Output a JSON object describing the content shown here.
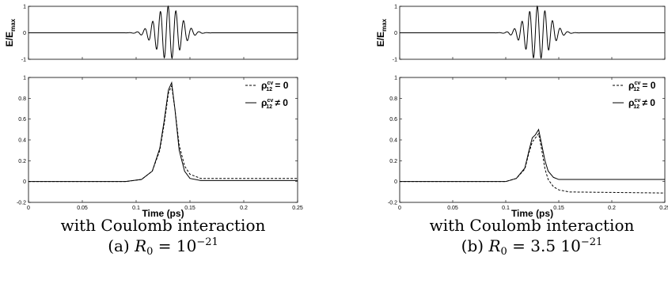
{
  "chart_data": [
    {
      "id": "a",
      "panels": [
        {
          "type": "line",
          "role": "field",
          "ylabel": {
            "main": "E/E",
            "sub": "max"
          },
          "xlim": [
            0,
            0.25
          ],
          "ylim": [
            -1,
            1
          ],
          "yticks": [
            "1",
            "0",
            "-1"
          ],
          "series": [
            {
              "style": "solid",
              "pulse": {
                "center": 0.13,
                "width": 0.016,
                "period": 0.0072,
                "amplitude": 1.0
              }
            }
          ]
        },
        {
          "type": "line",
          "role": "population",
          "xlabel": "Time (ps)",
          "xlim": [
            0,
            0.25
          ],
          "ylim": [
            -0.2,
            1
          ],
          "xticks": [
            "0",
            "0.05",
            "0.1",
            "0.15",
            "0.2",
            "0.25"
          ],
          "yticks": [
            "1",
            "0.8",
            "0.6",
            "0.4",
            "0.2",
            "0",
            "-0.2"
          ],
          "legend": {
            "placement": "top-right",
            "entries": [
              {
                "style": "dashed",
                "symbol": "ρ",
                "sub": "12",
                "sup": "cv",
                "rel": "= 0"
              },
              {
                "style": "solid",
                "symbol": "ρ",
                "sub": "12",
                "sup": "cv",
                "rel": "≠ 0"
              }
            ]
          },
          "series": [
            {
              "style": "dashed",
              "x": [
                0,
                0.09,
                0.105,
                0.115,
                0.122,
                0.126,
                0.13,
                0.133,
                0.136,
                0.14,
                0.145,
                0.15,
                0.16,
                0.17,
                0.25
              ],
              "y": [
                0,
                0,
                0.02,
                0.1,
                0.3,
                0.55,
                0.85,
                0.92,
                0.7,
                0.35,
                0.15,
                0.07,
                0.03,
                0.03,
                0.03
              ]
            },
            {
              "style": "solid",
              "x": [
                0,
                0.09,
                0.105,
                0.115,
                0.122,
                0.126,
                0.13,
                0.133,
                0.136,
                0.14,
                0.145,
                0.15,
                0.16,
                0.17,
                0.25
              ],
              "y": [
                0,
                0,
                0.02,
                0.1,
                0.32,
                0.58,
                0.88,
                0.95,
                0.7,
                0.3,
                0.1,
                0.03,
                0.01,
                0.01,
                0.01
              ]
            }
          ]
        }
      ],
      "caption": {
        "line1": "with Coulomb interaction",
        "label": "(a)",
        "var": "R",
        "var_sub": "0",
        "eq": "=",
        "value": "10",
        "exp": "−21"
      }
    },
    {
      "id": "b",
      "panels": [
        {
          "type": "line",
          "role": "field",
          "ylabel": {
            "main": "E/E",
            "sub": "max"
          },
          "xlim": [
            0,
            0.25
          ],
          "ylim": [
            -1,
            1
          ],
          "yticks": [
            "1",
            "0",
            "-1"
          ],
          "series": [
            {
              "style": "solid",
              "pulse": {
                "center": 0.13,
                "width": 0.016,
                "period": 0.0072,
                "amplitude": 1.0
              }
            }
          ]
        },
        {
          "type": "line",
          "role": "population",
          "xlabel": "Time (ps)",
          "xlim": [
            0,
            0.25
          ],
          "ylim": [
            -0.2,
            1
          ],
          "xticks": [
            "0",
            "0.05",
            "0.1",
            "0.15",
            "0.2",
            "0.25"
          ],
          "yticks": [
            "1",
            "0.8",
            "0.6",
            "0.4",
            "0.2",
            "0",
            "-0.2"
          ],
          "legend": {
            "placement": "top-right",
            "entries": [
              {
                "style": "dashed",
                "symbol": "ρ",
                "sub": "12",
                "sup": "cv",
                "rel": "= 0"
              },
              {
                "style": "solid",
                "symbol": "ρ",
                "sub": "12",
                "sup": "cv",
                "rel": "≠ 0"
              }
            ]
          },
          "series": [
            {
              "style": "dashed",
              "x": [
                0,
                0.1,
                0.11,
                0.118,
                0.122,
                0.125,
                0.128,
                0.131,
                0.134,
                0.137,
                0.14,
                0.145,
                0.15,
                0.16,
                0.25
              ],
              "y": [
                0,
                0,
                0.03,
                0.12,
                0.28,
                0.38,
                0.42,
                0.46,
                0.3,
                0.12,
                0.02,
                -0.05,
                -0.08,
                -0.1,
                -0.11
              ]
            },
            {
              "style": "solid",
              "x": [
                0,
                0.1,
                0.11,
                0.118,
                0.122,
                0.125,
                0.128,
                0.131,
                0.134,
                0.137,
                0.14,
                0.145,
                0.15,
                0.16,
                0.25
              ],
              "y": [
                0,
                0,
                0.03,
                0.13,
                0.3,
                0.42,
                0.45,
                0.5,
                0.35,
                0.2,
                0.1,
                0.04,
                0.02,
                0.02,
                0.02
              ]
            }
          ]
        }
      ],
      "caption": {
        "line1": "with Coulomb interaction",
        "label": "(b)",
        "var": "R",
        "var_sub": "0",
        "eq": "=",
        "value": "3.5 10",
        "exp": "−21"
      }
    }
  ]
}
